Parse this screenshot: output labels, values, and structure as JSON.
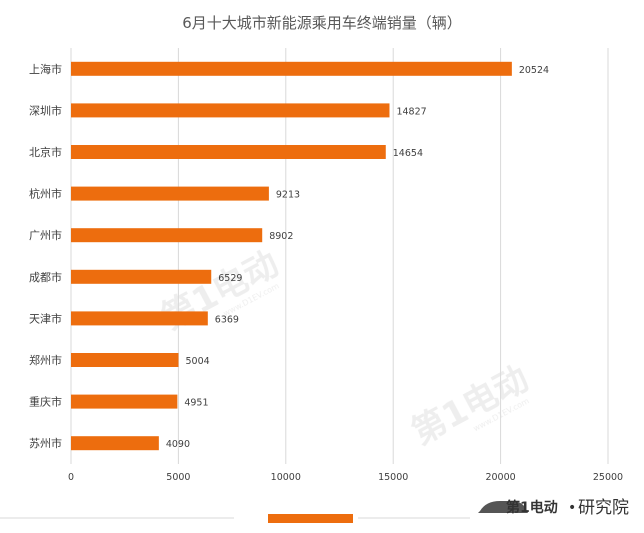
{
  "chart_data": {
    "type": "bar",
    "orientation": "horizontal",
    "title": "6月十大城市新能源乘用车终端销量（辆）",
    "categories": [
      "上海市",
      "深圳市",
      "北京市",
      "杭州市",
      "广州市",
      "成都市",
      "天津市",
      "郑州市",
      "重庆市",
      "苏州市"
    ],
    "series": [
      {
        "values": [
          20524,
          14827,
          14654,
          9213,
          8902,
          6529,
          6369,
          5004,
          4951,
          4090
        ]
      }
    ],
    "xlim": [
      0,
      25000
    ],
    "xticks": [
      "0",
      "5000",
      "10000",
      "15000",
      "20000",
      "25000"
    ],
    "grid": "vertical",
    "legend": "bottom",
    "bar_color": "#ED6D0E"
  },
  "branding": {
    "watermark_text": "第1电动",
    "watermark_url": "www.D1EV.com",
    "footer_logo": "第1电动",
    "footer_dot": "•",
    "footer_label": "研究院"
  }
}
